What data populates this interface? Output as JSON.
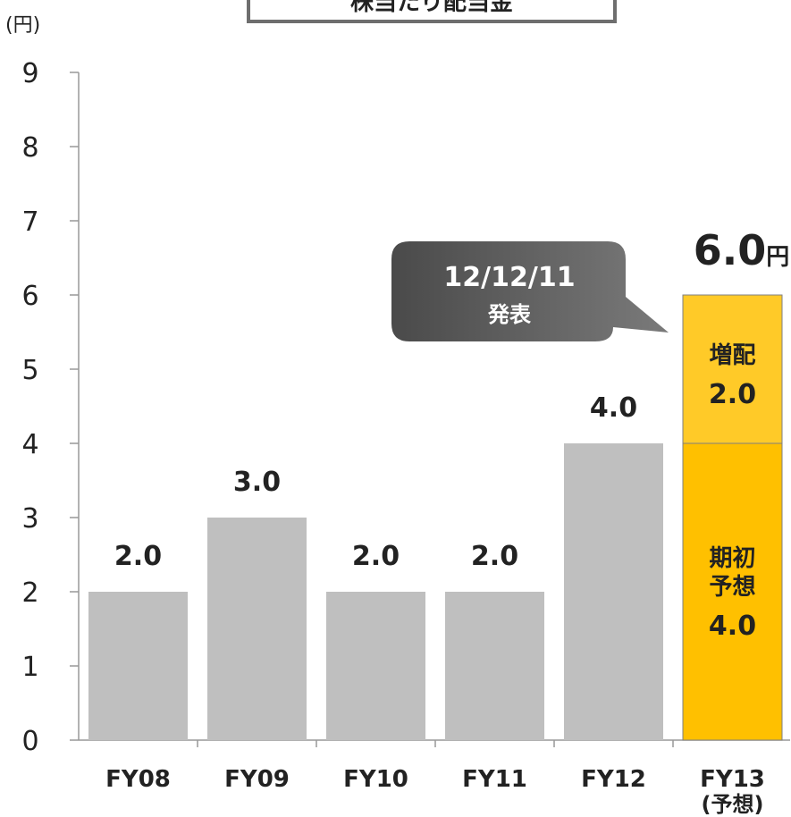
{
  "header": {
    "title": "株当たり配当金",
    "unit_label": "(円)"
  },
  "chart_data": {
    "type": "bar",
    "title": "株当たり配当金",
    "ylabel": "(円)",
    "ylim": [
      0,
      9
    ],
    "yticks": [
      "0",
      "1",
      "2",
      "3",
      "4",
      "5",
      "6",
      "7",
      "8",
      "9"
    ],
    "categories": [
      "FY08",
      "FY09",
      "FY10",
      "FY11",
      "FY12",
      "FY13"
    ],
    "category_sublabels": [
      "",
      "",
      "",
      "",
      "",
      "(予想)"
    ],
    "values": [
      2.0,
      3.0,
      2.0,
      2.0,
      4.0,
      6.0
    ],
    "data_labels": [
      "2.0",
      "3.0",
      "2.0",
      "2.0",
      "4.0",
      ""
    ],
    "stacked_last_bar": {
      "segments": [
        {
          "name": "期初予想",
          "value": 4.0,
          "label_lines": [
            "期初",
            "予想"
          ],
          "value_label": "4.0",
          "color": "#ffc000"
        },
        {
          "name": "増配",
          "value": 2.0,
          "label_lines": [
            "増配"
          ],
          "value_label": "2.0",
          "color": "#ffca28"
        }
      ],
      "total_label": "6.0",
      "total_unit": "円"
    },
    "callout": {
      "lines": [
        "12/12/11",
        "発表"
      ]
    },
    "colors": {
      "bar": "#bfbfbf",
      "highlight": "#ffc000",
      "highlight_top": "#ffca28",
      "callout": "#5f5f5f",
      "axis": "#999999"
    },
    "grid": false,
    "legend": "none"
  }
}
